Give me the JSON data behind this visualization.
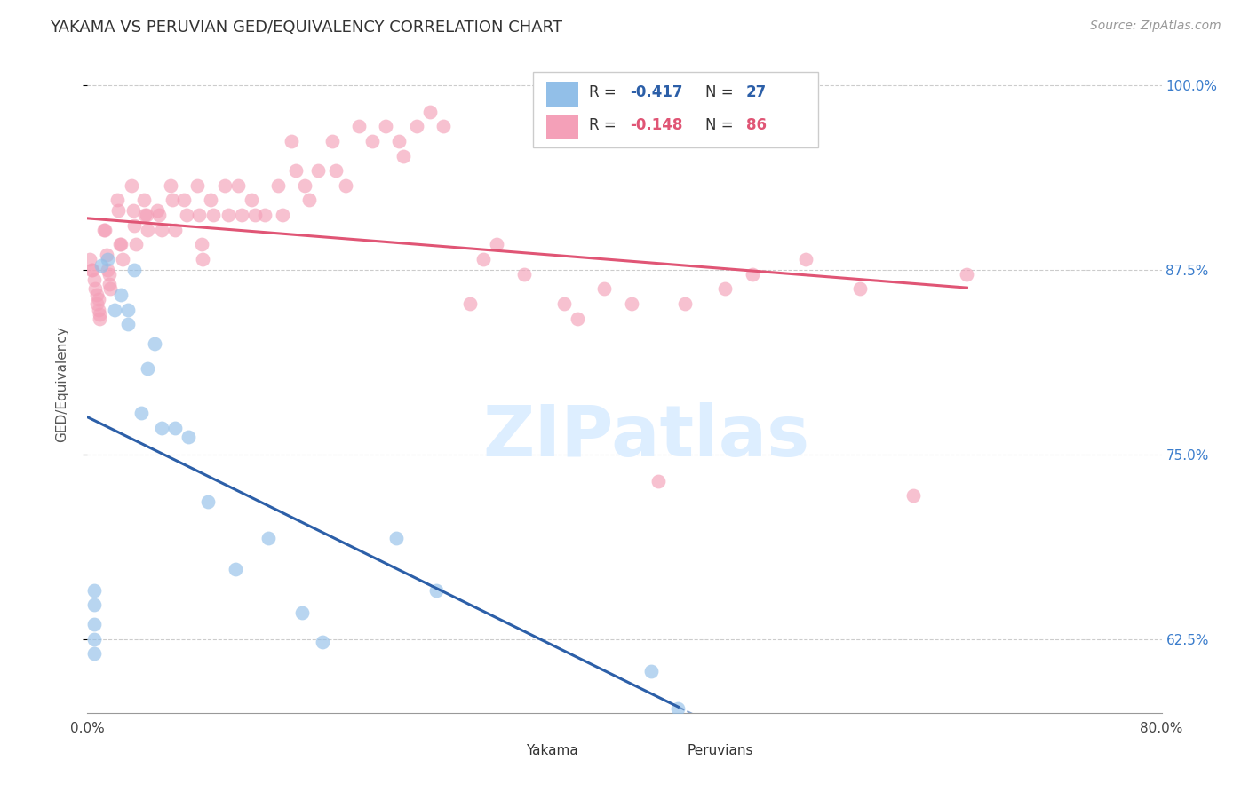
{
  "title": "YAKAMA VS PERUVIAN GED/EQUIVALENCY CORRELATION CHART",
  "source": "Source: ZipAtlas.com",
  "ylabel": "GED/Equivalency",
  "R_blue": -0.417,
  "N_blue": 27,
  "R_pink": -0.148,
  "N_pink": 86,
  "xlim": [
    0.0,
    0.8
  ],
  "ylim": [
    0.575,
    1.02
  ],
  "color_blue": "#92bfe8",
  "color_pink": "#f4a0b8",
  "line_color_blue": "#2c5fa8",
  "line_color_pink": "#e05575",
  "background_color": "#ffffff",
  "watermark_text": "ZIPatlas",
  "watermark_color": "#ddeeff",
  "yakama_x": [
    0.005,
    0.005,
    0.005,
    0.005,
    0.005,
    0.01,
    0.015,
    0.02,
    0.025,
    0.03,
    0.03,
    0.035,
    0.04,
    0.045,
    0.05,
    0.055,
    0.065,
    0.075,
    0.09,
    0.11,
    0.135,
    0.16,
    0.175,
    0.23,
    0.26,
    0.42,
    0.44
  ],
  "yakama_y": [
    0.615,
    0.625,
    0.635,
    0.648,
    0.658,
    0.878,
    0.882,
    0.848,
    0.858,
    0.838,
    0.848,
    0.875,
    0.778,
    0.808,
    0.825,
    0.768,
    0.768,
    0.762,
    0.718,
    0.672,
    0.693,
    0.643,
    0.623,
    0.693,
    0.658,
    0.603,
    0.578
  ],
  "peruvian_x": [
    0.002,
    0.003,
    0.004,
    0.005,
    0.006,
    0.007,
    0.007,
    0.008,
    0.008,
    0.009,
    0.009,
    0.012,
    0.013,
    0.014,
    0.015,
    0.016,
    0.016,
    0.017,
    0.022,
    0.023,
    0.024,
    0.025,
    0.026,
    0.033,
    0.034,
    0.035,
    0.036,
    0.042,
    0.043,
    0.044,
    0.045,
    0.052,
    0.053,
    0.055,
    0.062,
    0.063,
    0.065,
    0.072,
    0.074,
    0.082,
    0.083,
    0.085,
    0.086,
    0.092,
    0.094,
    0.102,
    0.105,
    0.112,
    0.115,
    0.122,
    0.125,
    0.132,
    0.142,
    0.145,
    0.152,
    0.155,
    0.162,
    0.165,
    0.172,
    0.182,
    0.185,
    0.192,
    0.202,
    0.212,
    0.222,
    0.232,
    0.235,
    0.245,
    0.255,
    0.265,
    0.285,
    0.295,
    0.305,
    0.325,
    0.355,
    0.365,
    0.385,
    0.405,
    0.425,
    0.445,
    0.475,
    0.495,
    0.535,
    0.575,
    0.615,
    0.655
  ],
  "peruvian_y": [
    0.882,
    0.875,
    0.875,
    0.868,
    0.862,
    0.858,
    0.852,
    0.855,
    0.848,
    0.845,
    0.842,
    0.902,
    0.902,
    0.885,
    0.875,
    0.872,
    0.865,
    0.862,
    0.922,
    0.915,
    0.892,
    0.892,
    0.882,
    0.932,
    0.915,
    0.905,
    0.892,
    0.922,
    0.912,
    0.912,
    0.902,
    0.915,
    0.912,
    0.902,
    0.932,
    0.922,
    0.902,
    0.922,
    0.912,
    0.932,
    0.912,
    0.892,
    0.882,
    0.922,
    0.912,
    0.932,
    0.912,
    0.932,
    0.912,
    0.922,
    0.912,
    0.912,
    0.932,
    0.912,
    0.962,
    0.942,
    0.932,
    0.922,
    0.942,
    0.962,
    0.942,
    0.932,
    0.972,
    0.962,
    0.972,
    0.962,
    0.952,
    0.972,
    0.982,
    0.972,
    0.852,
    0.882,
    0.892,
    0.872,
    0.852,
    0.842,
    0.862,
    0.852,
    0.732,
    0.852,
    0.862,
    0.872,
    0.882,
    0.862,
    0.722,
    0.872
  ]
}
